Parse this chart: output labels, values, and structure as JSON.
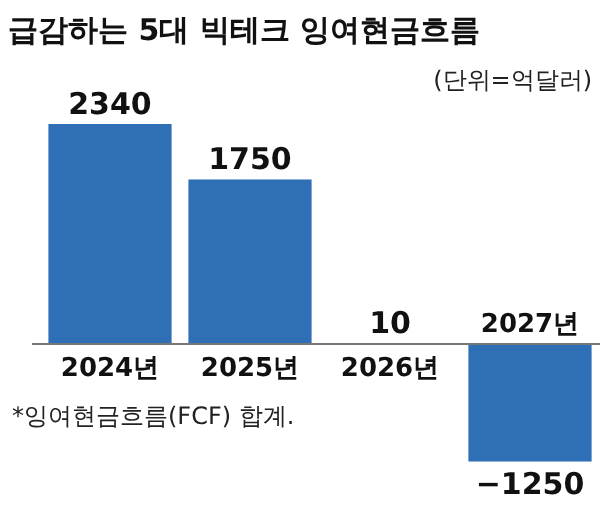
{
  "chart_data": {
    "type": "bar",
    "title": "급감하는 5대 빅테크 잉여현금흐름",
    "subtitle": "(단위=억달러)",
    "categories": [
      "2024년",
      "2025년",
      "2026년",
      "2027년"
    ],
    "values": [
      2340,
      1750,
      10,
      -1250
    ],
    "color": "#2f6fb6",
    "data_labels": true,
    "annotations": [
      "*잉여현금흐름(FCF) 합계."
    ]
  }
}
